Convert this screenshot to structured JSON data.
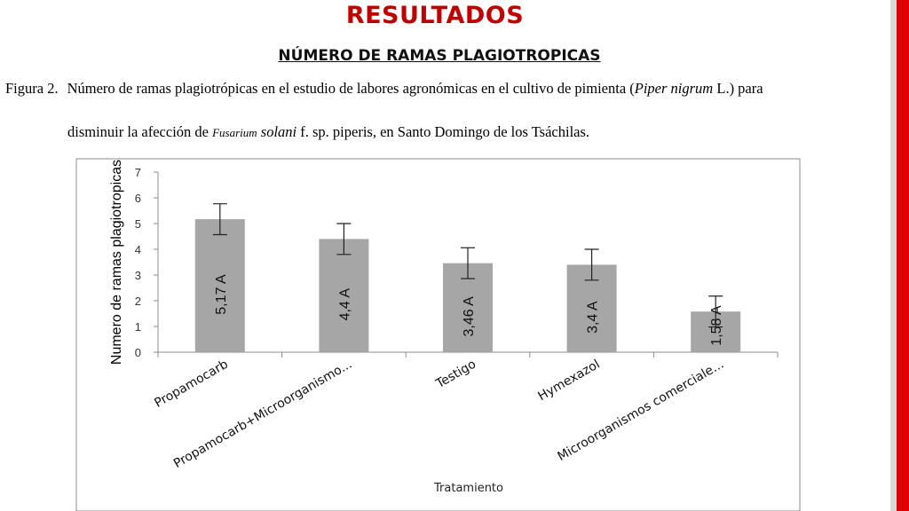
{
  "slide": {
    "title": "RESULTADOS",
    "subtitle": "NÚMERO DE RAMAS PLAGIOTROPICAS"
  },
  "caption": {
    "line1_prefix": "Figura 2.",
    "line1_main": "Número de ramas plagiotrópicas en el estudio de labores agronómicas en el cultivo de  pimienta (",
    "line1_italic": "Piper nigrum",
    "line1_end": " L.) para",
    "line2_start": "disminuir la afección  de ",
    "line2_italic_small": "Fusarium",
    "line2_italic": " solani",
    "line2_end": " f. sp. piperis, en Santo Domingo de los Tsáchilas."
  },
  "chart_data": {
    "type": "bar",
    "xlabel": "Tratamiento",
    "ylabel": "Numero de ramas plagiotropicas",
    "ylim": [
      0,
      7
    ],
    "yticks": [
      "0",
      "1",
      "2",
      "3",
      "4",
      "5",
      "6",
      "7"
    ],
    "grid": false,
    "categories": [
      "Propamocarb",
      "Propamocarb+Microorganismo...",
      "Testigo",
      "Hymexazol",
      "Microorganismos comerciale..."
    ],
    "values": [
      5.17,
      4.4,
      3.46,
      3.4,
      1.58
    ],
    "error": [
      0.6,
      0.6,
      0.6,
      0.6,
      0.6
    ],
    "data_labels": [
      "5,17    A",
      "4,4    A",
      "3,46    A",
      "3,4    A",
      "1,58    A"
    ],
    "bar_color": "#a6a6a6"
  }
}
